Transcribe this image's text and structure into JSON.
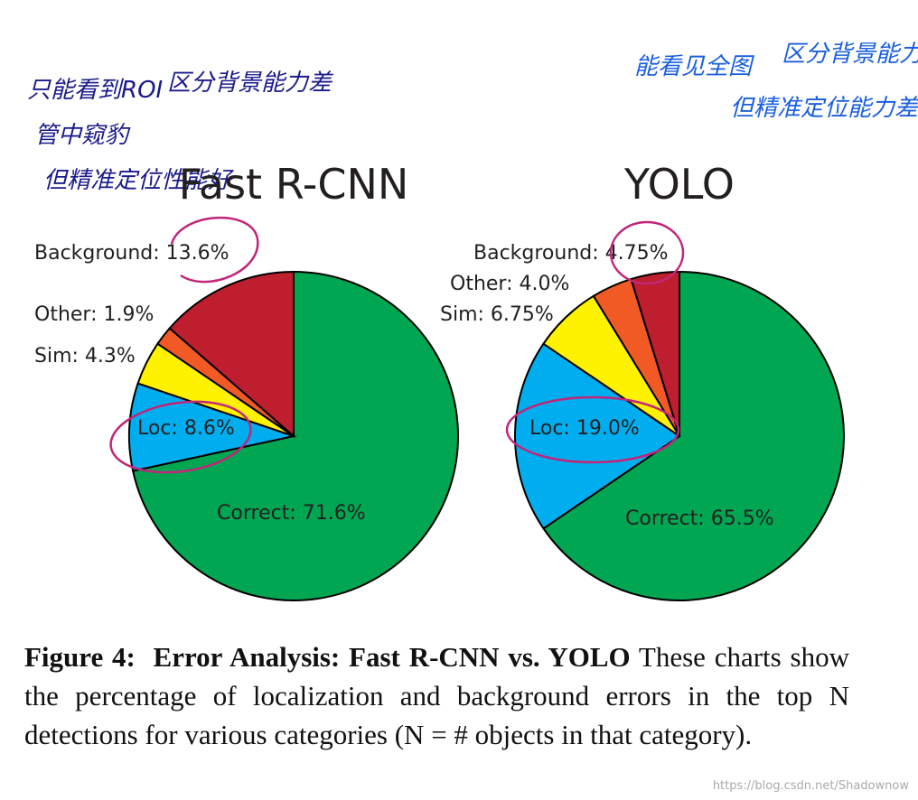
{
  "chart_data": [
    {
      "type": "pie",
      "title": "Fast R-CNN",
      "categories": [
        "Correct:",
        "Loc:",
        "Sim:",
        "Other:",
        "Background:"
      ],
      "values": [
        71.6,
        8.6,
        4.3,
        1.9,
        13.6
      ],
      "value_labels": [
        "71.6%",
        "8.6%",
        "4.3%",
        "1.9%",
        "13.6%"
      ],
      "colors": [
        "#00a651",
        "#00aeef",
        "#fff200",
        "#f15a24",
        "#be1e2d"
      ]
    },
    {
      "type": "pie",
      "title": "YOLO",
      "categories": [
        "Correct:",
        "Loc:",
        "Sim:",
        "Other:",
        "Background:"
      ],
      "values": [
        65.5,
        19.0,
        6.75,
        4.0,
        4.75
      ],
      "value_labels": [
        "65.5%",
        "19.0%",
        "6.75%",
        "4.0%",
        "4.75%"
      ],
      "colors": [
        "#00a651",
        "#00aeef",
        "#fff200",
        "#f15a24",
        "#be1e2d"
      ]
    }
  ],
  "caption": {
    "label": "Figure 4:",
    "title": "Error Analysis: Fast R-CNN vs. YOLO",
    "text": "These charts show the percentage of localization and background errors in the top N detections for various categories (N = # objects in that category)."
  },
  "handwritten_notes": {
    "left": [
      "只能看到ROI",
      "区分背景能力差",
      "管中窥豹",
      "但精准定位性能好"
    ],
    "right": [
      "能看见全图",
      "区分背景能力强",
      "但精准定位能力差"
    ]
  },
  "watermark": "https://blog.csdn.net/Shadownow"
}
